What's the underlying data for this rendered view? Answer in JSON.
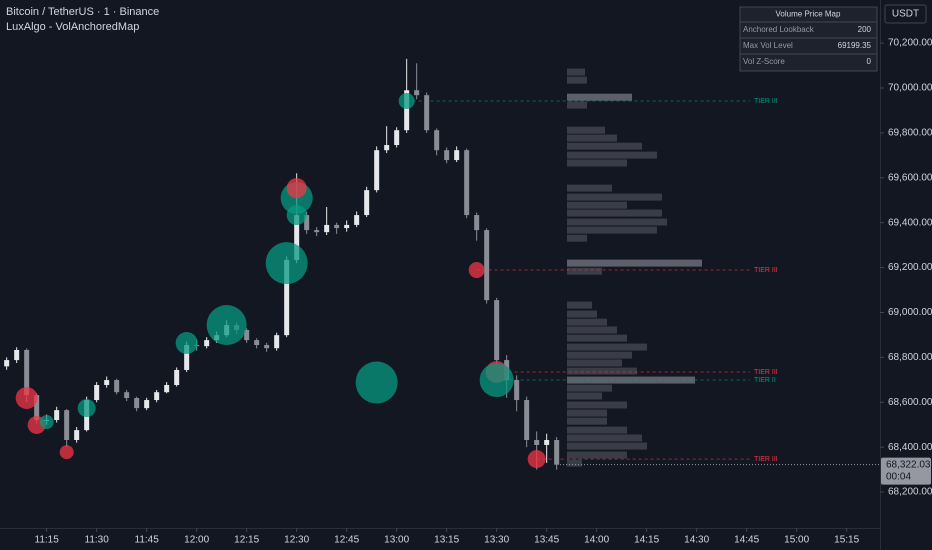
{
  "chart_data": {
    "type": "candlestick",
    "title": "Bitcoin / TetherUS · 1 · Binance",
    "subtitle": "LuxAlgo - VolAnchoredMap",
    "currency": "USDT",
    "xlim": [
      "11:01",
      "15:25"
    ],
    "xticks": [
      "11:15",
      "11:30",
      "11:45",
      "12:00",
      "12:15",
      "12:30",
      "12:45",
      "13:00",
      "13:15",
      "13:30",
      "13:45",
      "14:00",
      "14:15",
      "14:30",
      "14:45",
      "15:00",
      "15:15"
    ],
    "ylim": [
      68040,
      70392
    ],
    "yticks": [
      {
        "value": 68200,
        "label": "68,200.00"
      },
      {
        "value": 68400,
        "label": "68,400.00"
      },
      {
        "value": 68600,
        "label": "68,600.00"
      },
      {
        "value": 68800,
        "label": "68,800.00"
      },
      {
        "value": 69000,
        "label": "69,000.00"
      },
      {
        "value": 69200,
        "label": "69,200.00"
      },
      {
        "value": 69400,
        "label": "69,400.00"
      },
      {
        "value": 69600,
        "label": "69,600.00"
      },
      {
        "value": 69800,
        "label": "69,800.00"
      },
      {
        "value": 70000,
        "label": "70,000.00"
      },
      {
        "value": 70200,
        "label": "70,200.00"
      }
    ],
    "up_color": "#e6e7ea",
    "down_color": "#8a8d96",
    "x": [
      "11:03",
      "11:06",
      "11:09",
      "11:12",
      "11:15",
      "11:18",
      "11:21",
      "11:24",
      "11:27",
      "11:30",
      "11:33",
      "11:36",
      "11:39",
      "11:42",
      "11:45",
      "11:48",
      "11:51",
      "11:54",
      "11:57",
      "12:00",
      "12:03",
      "12:06",
      "12:09",
      "12:12",
      "12:15",
      "12:18",
      "12:21",
      "12:24",
      "12:27",
      "12:30",
      "12:33",
      "12:36",
      "12:39",
      "12:42",
      "12:45",
      "12:48",
      "12:51",
      "12:54",
      "12:57",
      "13:00",
      "13:03",
      "13:06",
      "13:09",
      "13:12",
      "13:15",
      "13:18",
      "13:21",
      "13:24",
      "13:27",
      "13:30",
      "13:33",
      "13:36",
      "13:39",
      "13:42",
      "13:45",
      "13:48"
    ],
    "open": [
      68760,
      68788,
      68833,
      68632,
      68521,
      68521,
      68565,
      68432,
      68476,
      68610,
      68677,
      68699,
      68645,
      68619,
      68574,
      68610,
      68645,
      68677,
      68744,
      68855,
      68850,
      68877,
      68899,
      68944,
      68922,
      68877,
      68855,
      68841,
      68899,
      69234,
      69434,
      69367,
      69358,
      69390,
      69376,
      69390,
      69434,
      69545,
      69723,
      69746,
      69812,
      69990,
      69968,
      69812,
      69723,
      69679,
      69723,
      69434,
      69367,
      69055,
      68788,
      68699,
      68610,
      68432,
      68410,
      68432
    ],
    "high": [
      68800,
      68845,
      68840,
      68640,
      68545,
      68580,
      68570,
      68490,
      68625,
      68690,
      68715,
      68705,
      68655,
      68625,
      68620,
      68655,
      68690,
      68755,
      68870,
      68880,
      68890,
      68915,
      68965,
      68955,
      68930,
      68885,
      68865,
      68910,
      69250,
      69620,
      69450,
      69380,
      69470,
      69400,
      69410,
      69450,
      69560,
      69740,
      69830,
      69825,
      70130,
      70110,
      69980,
      69820,
      69735,
      69740,
      69730,
      69445,
      69375,
      69065,
      68810,
      68720,
      68625,
      68470,
      68460,
      68445
    ],
    "low": [
      68745,
      68775,
      68600,
      68505,
      68500,
      68510,
      68400,
      68420,
      68470,
      68600,
      68665,
      68635,
      68605,
      68560,
      68565,
      68600,
      68640,
      68670,
      68735,
      68830,
      68840,
      68865,
      68890,
      68905,
      68865,
      68840,
      68825,
      68830,
      68890,
      69220,
      69350,
      69340,
      69345,
      69350,
      69360,
      69380,
      69425,
      69535,
      69710,
      69735,
      69800,
      69950,
      69800,
      69700,
      69665,
      69670,
      69420,
      69320,
      69040,
      68770,
      68620,
      68560,
      68400,
      68300,
      68330,
      68300
    ],
    "close": [
      68788,
      68833,
      68632,
      68521,
      68521,
      68565,
      68432,
      68476,
      68610,
      68677,
      68699,
      68645,
      68619,
      68574,
      68610,
      68645,
      68677,
      68744,
      68855,
      68850,
      68877,
      68899,
      68944,
      68922,
      68877,
      68855,
      68841,
      68899,
      69234,
      69434,
      69367,
      69358,
      69390,
      69376,
      69390,
      69434,
      69545,
      69723,
      69746,
      69812,
      69990,
      69968,
      69812,
      69723,
      69679,
      69723,
      69434,
      69367,
      69055,
      68788,
      68699,
      68610,
      68432,
      68410,
      68432,
      68322.03
    ],
    "last_price": {
      "value": 68322.03,
      "label": "68,322.03"
    },
    "countdown": "00:04",
    "bubbles": {
      "times": [
        "11:09",
        "11:12",
        "11:15",
        "11:21",
        "11:27",
        "11:57",
        "12:09",
        "12:27",
        "12:30",
        "12:30",
        "12:30",
        "12:54",
        "13:03",
        "13:24",
        "13:30",
        "13:30",
        "13:42"
      ],
      "prices": [
        68619,
        68499,
        68512,
        68378,
        68574,
        68864,
        68944,
        69220,
        69510,
        69554,
        69434,
        68688,
        69942,
        69189,
        68735,
        68699,
        68347
      ],
      "sizes": [
        11,
        9,
        7,
        7,
        9,
        11,
        20,
        21,
        16,
        10,
        10,
        21,
        8,
        8,
        11,
        17,
        9
      ],
      "colors": [
        "#f23645",
        "#f23645",
        "#089981",
        "#f23645",
        "#089981",
        "#089981",
        "#089981",
        "#089981",
        "#089981",
        "#f23645",
        "#089981",
        "#089981",
        "#089981",
        "#f23645",
        "#f23645",
        "#089981",
        "#f23645"
      ]
    },
    "volume_profile": {
      "prices": [
        70071,
        70035,
        69959,
        69924,
        69812,
        69777,
        69741,
        69701,
        69666,
        69554,
        69514,
        69478,
        69443,
        69403,
        69367,
        69331,
        69220,
        69184,
        69033,
        68993,
        68957,
        68922,
        68886,
        68846,
        68810,
        68775,
        68739,
        68699,
        68663,
        68628,
        68588,
        68552,
        68516,
        68476,
        68441,
        68405,
        68365,
        68329
      ],
      "volumes": [
        18,
        20,
        65,
        20,
        38,
        50,
        75,
        90,
        60,
        45,
        95,
        60,
        95,
        100,
        90,
        20,
        135,
        35,
        25,
        30,
        40,
        50,
        60,
        80,
        65,
        55,
        70,
        128,
        45,
        35,
        60,
        40,
        40,
        60,
        75,
        80,
        60,
        15
      ],
      "colors": [
        "#3a3d47",
        "#3a3d47",
        "#5d606b",
        "#3a3d47",
        "#3a3d47",
        "#3a3d47",
        "#3a3d47",
        "#3a3d47",
        "#3a3d47",
        "#3a3d47",
        "#3a3d47",
        "#3a3d47",
        "#3a3d47",
        "#3a3d47",
        "#3a3d47",
        "#3a3d47",
        "#5d606b",
        "#3a3d47",
        "#3a3d47",
        "#3a3d47",
        "#3a3d47",
        "#3a3d47",
        "#3a3d47",
        "#3a3d47",
        "#3a3d47",
        "#3a3d47",
        "#3a3d47",
        "#5d606b",
        "#3a3d47",
        "#3a3d47",
        "#3a3d47",
        "#3a3d47",
        "#3a3d47",
        "#3a3d47",
        "#3a3d47",
        "#3a3d47",
        "#3a3d47",
        "#3a3d47"
      ]
    },
    "tiers": [
      {
        "label": "TIER III",
        "price": 69942,
        "start": "13:03",
        "color": "#089981"
      },
      {
        "label": "TIER III",
        "price": 69189,
        "start": "13:24",
        "color": "#f23645"
      },
      {
        "label": "TIER III",
        "price": 68735,
        "start": "13:30",
        "color": "#f23645"
      },
      {
        "label": "TIER II",
        "price": 68699,
        "start": "13:30",
        "color": "#089981"
      },
      {
        "label": "TIER III",
        "price": 68347,
        "start": "13:42",
        "color": "#f23645"
      }
    ],
    "table": {
      "title": "Volume Price Map",
      "rows": [
        [
          "Anchored Lookback",
          200
        ],
        [
          "Max Vol Level",
          69199.35
        ],
        [
          "Vol Z-Score",
          0
        ]
      ]
    }
  }
}
